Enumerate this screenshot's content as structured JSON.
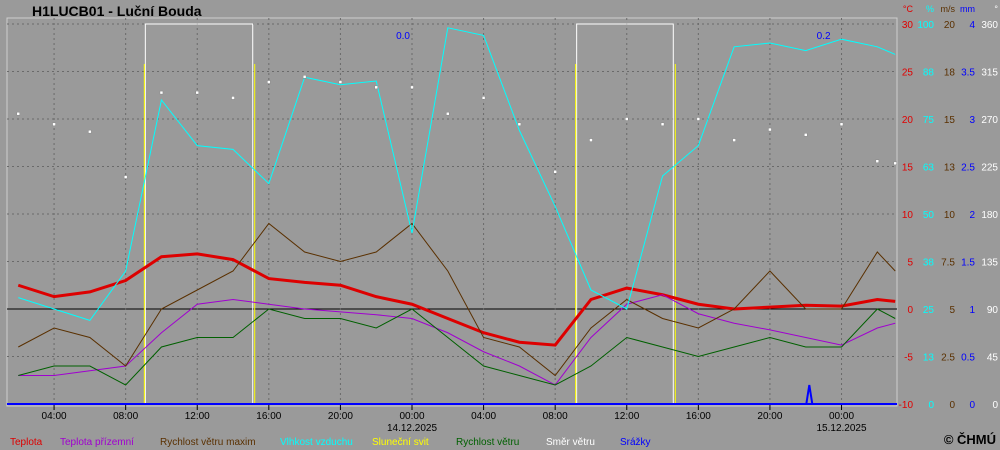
{
  "title": "H1LUCB01 - Luční Bouda",
  "copyright": "© ČHMÚ",
  "chart_data": {
    "type": "line",
    "x_unit": "hours since 13.12.2025 00:00",
    "xlim": [
      1.4,
      51.1
    ],
    "x_ticks": [
      {
        "h": 4,
        "label": "04:00"
      },
      {
        "h": 8,
        "label": "08:00"
      },
      {
        "h": 12,
        "label": "12:00"
      },
      {
        "h": 16,
        "label": "16:00"
      },
      {
        "h": 20,
        "label": "20:00"
      },
      {
        "h": 24,
        "label": "00:00",
        "date": "14.12.2025"
      },
      {
        "h": 28,
        "label": "04:00"
      },
      {
        "h": 32,
        "label": "08:00"
      },
      {
        "h": 36,
        "label": "12:00"
      },
      {
        "h": 40,
        "label": "16:00"
      },
      {
        "h": 44,
        "label": "20:00"
      },
      {
        "h": 48,
        "label": "00:00",
        "date": "15.12.2025"
      }
    ],
    "axes": [
      {
        "unit": "°C",
        "range": [
          -10,
          30
        ],
        "color": "#e00000",
        "ticks": [
          "30",
          "25",
          "20",
          "15",
          "10",
          "5",
          "0",
          "-5",
          "-10"
        ]
      },
      {
        "unit": "%",
        "range": [
          0,
          100
        ],
        "color": "#00ffff",
        "ticks": [
          "100",
          "88",
          "75",
          "63",
          "50",
          "38",
          "25",
          "13",
          "0"
        ]
      },
      {
        "unit": "m/s",
        "range": [
          0,
          20
        ],
        "color": "#5a3000",
        "ticks": [
          "20",
          "18",
          "15",
          "13",
          "10",
          "7.5",
          "5",
          "2.5",
          "0"
        ]
      },
      {
        "unit": "mm",
        "range": [
          0,
          4
        ],
        "color": "#0000ff",
        "ticks": [
          "4",
          "3.5",
          "3",
          "2.5",
          "2",
          "1.5",
          "1",
          "0.5",
          "0"
        ]
      },
      {
        "unit": "°",
        "range": [
          0,
          360
        ],
        "color": "#ffffff",
        "ticks": [
          "360",
          "315",
          "270",
          "225",
          "180",
          "135",
          "90",
          "45",
          "0"
        ]
      }
    ],
    "x": [
      2,
      4,
      6,
      8,
      10,
      12,
      14,
      16,
      18,
      20,
      22,
      24,
      26,
      28,
      30,
      32,
      34,
      36,
      38,
      40,
      42,
      44,
      46,
      48,
      50,
      51
    ],
    "series": [
      {
        "name": "Teplota",
        "axis": 0,
        "color": "#dd0000",
        "width": 3,
        "values": [
          2.5,
          1.3,
          1.8,
          3,
          5.5,
          5.8,
          5.2,
          3.2,
          2.8,
          2.5,
          1.3,
          0.5,
          -1,
          -2.5,
          -3.5,
          -3.8,
          1,
          2.2,
          1.5,
          0.5,
          0,
          0.2,
          0.4,
          0.3,
          1,
          0.8
        ]
      },
      {
        "name": "Teplota přízemní",
        "axis": 0,
        "color": "#a000d0",
        "width": 1,
        "values": [
          -7,
          -7,
          -6.5,
          -6,
          -2.5,
          0.5,
          1,
          0.5,
          0,
          -0.3,
          -0.6,
          -1,
          -2.5,
          -4.5,
          -6,
          -8,
          -3,
          0.5,
          1.5,
          -0.5,
          -1.5,
          -2.2,
          -3,
          -3.8,
          -2,
          -1.5
        ]
      },
      {
        "name": "Rychlost větru maxim",
        "axis": 2,
        "color": "#5a3000",
        "width": 1,
        "values": [
          3,
          4,
          3.5,
          2,
          5,
          6,
          7,
          9.5,
          8,
          7.5,
          8,
          9.5,
          7,
          3.5,
          3,
          1.5,
          4,
          5.5,
          4.5,
          4,
          5,
          7,
          5,
          5,
          8,
          7
        ]
      },
      {
        "name": "Vlhkost vzduchu",
        "axis": 1,
        "color": "#00ffff",
        "width": 1,
        "values": [
          28,
          25,
          22,
          35,
          80,
          68,
          67,
          58,
          86,
          84,
          85,
          45,
          99,
          97,
          72,
          52,
          30,
          25,
          60,
          68,
          94,
          95,
          93,
          96,
          94,
          92
        ]
      },
      {
        "name": "Sluneční svit",
        "axis": "fraction",
        "color": "#ffff00",
        "width": 1,
        "periods": [
          [
            9.1,
            15.1
          ],
          [
            33.2,
            38.6
          ]
        ]
      },
      {
        "name": "Rychlost větru",
        "axis": 2,
        "color": "#006000",
        "width": 1,
        "values": [
          1.5,
          2,
          2,
          1,
          3,
          3.5,
          3.5,
          5,
          4.5,
          4.5,
          4,
          5,
          3.5,
          2,
          1.5,
          1,
          2,
          3.5,
          3,
          2.5,
          3,
          3.5,
          3,
          3,
          5,
          4.5
        ]
      },
      {
        "name": "Směr  větru",
        "axis": 4,
        "color": "#ffffff",
        "type": "scatter",
        "values": [
          275,
          265,
          258,
          215,
          295,
          295,
          290,
          305,
          310,
          305,
          300,
          300,
          275,
          290,
          265,
          220,
          250,
          270,
          265,
          270,
          250,
          260,
          255,
          265,
          230,
          228
        ]
      },
      {
        "name": "Srážky",
        "axis": 3,
        "color": "#0000ff",
        "width": 2,
        "events": [
          {
            "h": 46.2,
            "mm": 0.2
          }
        ]
      }
    ],
    "annotations": [
      {
        "h": 23.5,
        "text": "0.0"
      },
      {
        "h": 47,
        "text": "0.2"
      }
    ],
    "grid": true,
    "legend": "bottom"
  }
}
